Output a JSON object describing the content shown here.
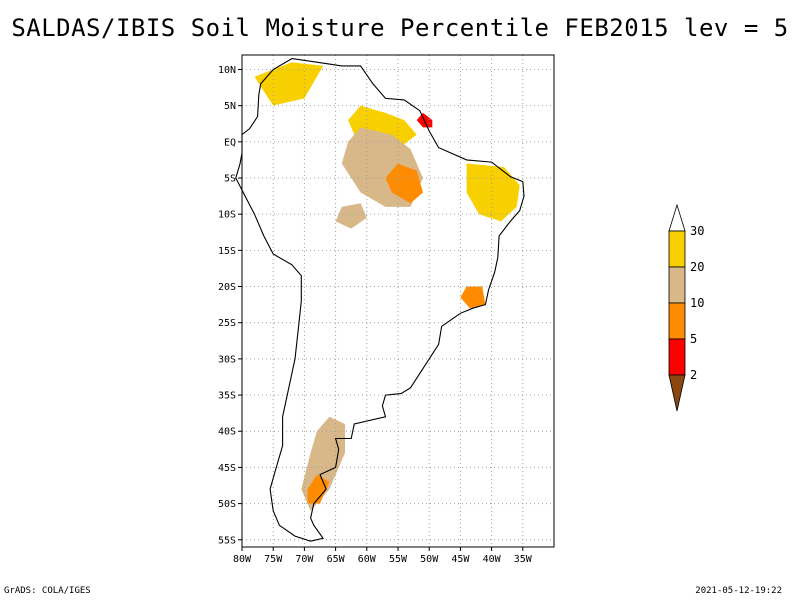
{
  "title": "SALDAS/IBIS Soil Moisture Percentile FEB2015 lev = 5",
  "footer": {
    "left": "GrADS: COLA/IGES",
    "right": "2021-05-12-19:22"
  },
  "map": {
    "lon_range": [
      -80,
      -30
    ],
    "lat_range": [
      -56,
      12
    ],
    "lon_ticks": [
      {
        "value": -80,
        "label": "80W"
      },
      {
        "value": -75,
        "label": "75W"
      },
      {
        "value": -70,
        "label": "70W"
      },
      {
        "value": -65,
        "label": "65W"
      },
      {
        "value": -60,
        "label": "60W"
      },
      {
        "value": -55,
        "label": "55W"
      },
      {
        "value": -50,
        "label": "50W"
      },
      {
        "value": -45,
        "label": "45W"
      },
      {
        "value": -40,
        "label": "40W"
      },
      {
        "value": -35,
        "label": "35W"
      }
    ],
    "lat_ticks": [
      {
        "value": 10,
        "label": "10N"
      },
      {
        "value": 5,
        "label": "5N"
      },
      {
        "value": 0,
        "label": "EQ"
      },
      {
        "value": -5,
        "label": "5S"
      },
      {
        "value": -10,
        "label": "10S"
      },
      {
        "value": -15,
        "label": "15S"
      },
      {
        "value": -20,
        "label": "20S"
      },
      {
        "value": -25,
        "label": "25S"
      },
      {
        "value": -30,
        "label": "30S"
      },
      {
        "value": -35,
        "label": "35S"
      },
      {
        "value": -40,
        "label": "40S"
      },
      {
        "value": -45,
        "label": "45S"
      },
      {
        "value": -50,
        "label": "50S"
      },
      {
        "value": -55,
        "label": "55S"
      }
    ],
    "continent_outline": [
      [
        -77,
        8
      ],
      [
        -75,
        10
      ],
      [
        -72,
        11.5
      ],
      [
        -68,
        11
      ],
      [
        -64,
        10.5
      ],
      [
        -61,
        10.5
      ],
      [
        -59,
        8
      ],
      [
        -57,
        6
      ],
      [
        -54,
        5.8
      ],
      [
        -51.5,
        4.3
      ],
      [
        -50,
        1.5
      ],
      [
        -48.5,
        -0.8
      ],
      [
        -44,
        -2.5
      ],
      [
        -40,
        -2.8
      ],
      [
        -37,
        -4.8
      ],
      [
        -35,
        -5.5
      ],
      [
        -34.8,
        -7.5
      ],
      [
        -35.5,
        -9.5
      ],
      [
        -37,
        -11
      ],
      [
        -38.8,
        -13
      ],
      [
        -39,
        -16
      ],
      [
        -39.5,
        -18
      ],
      [
        -40.5,
        -20.5
      ],
      [
        -41,
        -22.5
      ],
      [
        -43,
        -23
      ],
      [
        -45,
        -23.7
      ],
      [
        -48,
        -25.5
      ],
      [
        -48.5,
        -28
      ],
      [
        -50,
        -30
      ],
      [
        -51.5,
        -32
      ],
      [
        -53,
        -34
      ],
      [
        -54.5,
        -34.8
      ],
      [
        -57,
        -35
      ],
      [
        -57.5,
        -36.5
      ],
      [
        -57,
        -38
      ],
      [
        -62,
        -39
      ],
      [
        -62.5,
        -41
      ],
      [
        -65,
        -41
      ],
      [
        -64.5,
        -42.5
      ],
      [
        -65,
        -45
      ],
      [
        -67.5,
        -46
      ],
      [
        -66.5,
        -48
      ],
      [
        -68.5,
        -50
      ],
      [
        -69,
        -52
      ],
      [
        -68.5,
        -53
      ],
      [
        -67,
        -54.8
      ],
      [
        -69,
        -55.2
      ],
      [
        -71.5,
        -54.5
      ],
      [
        -74,
        -53
      ],
      [
        -75,
        -51
      ],
      [
        -75.5,
        -48
      ],
      [
        -74.5,
        -45
      ],
      [
        -73.5,
        -42
      ],
      [
        -73.5,
        -38
      ],
      [
        -72.5,
        -34
      ],
      [
        -71.5,
        -30
      ],
      [
        -71,
        -26
      ],
      [
        -70.5,
        -22
      ],
      [
        -70.5,
        -18.5
      ],
      [
        -72,
        -17
      ],
      [
        -75,
        -15.5
      ],
      [
        -76.5,
        -13
      ],
      [
        -78,
        -10
      ],
      [
        -79.5,
        -7.5
      ],
      [
        -81,
        -5
      ],
      [
        -80.3,
        -3
      ],
      [
        -80,
        -1.5
      ],
      [
        -80,
        1
      ],
      [
        -78.8,
        1.8
      ],
      [
        -77.5,
        3.5
      ],
      [
        -77.3,
        6.5
      ],
      [
        -77,
        8
      ]
    ],
    "anomaly_regions": [
      {
        "category": "20-30",
        "points": [
          [
            -61,
            5
          ],
          [
            -57,
            4
          ],
          [
            -54,
            3
          ],
          [
            -52,
            1
          ],
          [
            -55,
            -1
          ],
          [
            -59,
            -1
          ],
          [
            -62,
            1
          ],
          [
            -63,
            3
          ]
        ]
      },
      {
        "category": "10-20",
        "points": [
          [
            -61,
            2
          ],
          [
            -56,
            1
          ],
          [
            -53,
            -1
          ],
          [
            -51,
            -5
          ],
          [
            -53,
            -9
          ],
          [
            -57,
            -9
          ],
          [
            -61,
            -7
          ],
          [
            -64,
            -3
          ],
          [
            -63,
            0
          ]
        ]
      },
      {
        "category": "5-10",
        "points": [
          [
            -55,
            -3
          ],
          [
            -52,
            -4
          ],
          [
            -51,
            -7
          ],
          [
            -53,
            -8.5
          ],
          [
            -56,
            -7
          ],
          [
            -57,
            -5
          ]
        ]
      },
      {
        "category": "2-5",
        "points": [
          [
            -51,
            4
          ],
          [
            -49.5,
            3
          ],
          [
            -49.5,
            2
          ],
          [
            -51,
            2
          ],
          [
            -52,
            3
          ]
        ]
      },
      {
        "category": "20-30",
        "points": [
          [
            -44,
            -3
          ],
          [
            -38,
            -3.5
          ],
          [
            -35.5,
            -6
          ],
          [
            -36,
            -9
          ],
          [
            -38.5,
            -11
          ],
          [
            -42,
            -10
          ],
          [
            -44,
            -7
          ]
        ]
      },
      {
        "category": "10-20",
        "points": [
          [
            -66,
            -38
          ],
          [
            -63.5,
            -39
          ],
          [
            -63.5,
            -43
          ],
          [
            -66,
            -48
          ],
          [
            -69,
            -51
          ],
          [
            -70.5,
            -48
          ],
          [
            -69,
            -43
          ],
          [
            -68,
            -40
          ]
        ]
      },
      {
        "category": "5-10",
        "points": [
          [
            -68,
            -46
          ],
          [
            -66,
            -47
          ],
          [
            -67.5,
            -50
          ],
          [
            -69.5,
            -50
          ],
          [
            -69.5,
            -48
          ]
        ]
      },
      {
        "category": "10-20",
        "points": [
          [
            -64,
            -9
          ],
          [
            -61,
            -8.5
          ],
          [
            -60,
            -10.5
          ],
          [
            -62.5,
            -12
          ],
          [
            -65,
            -11
          ]
        ]
      },
      {
        "category": "5-10",
        "points": [
          [
            -44,
            -20
          ],
          [
            -41.5,
            -20
          ],
          [
            -41,
            -22.5
          ],
          [
            -43.5,
            -23
          ],
          [
            -45,
            -21.5
          ]
        ]
      },
      {
        "category": "20-30",
        "points": [
          [
            -78,
            9
          ],
          [
            -72,
            11
          ],
          [
            -67,
            10.5
          ],
          [
            -70,
            6
          ],
          [
            -75,
            5
          ]
        ]
      }
    ],
    "colorbar": {
      "labels": [
        "30",
        "20",
        "10",
        "5",
        "2"
      ],
      "colors": [
        "#ffffff",
        "#f8d000",
        "#d8b888",
        "#ff8c00",
        "#ff0000",
        "#8c4610"
      ]
    }
  }
}
